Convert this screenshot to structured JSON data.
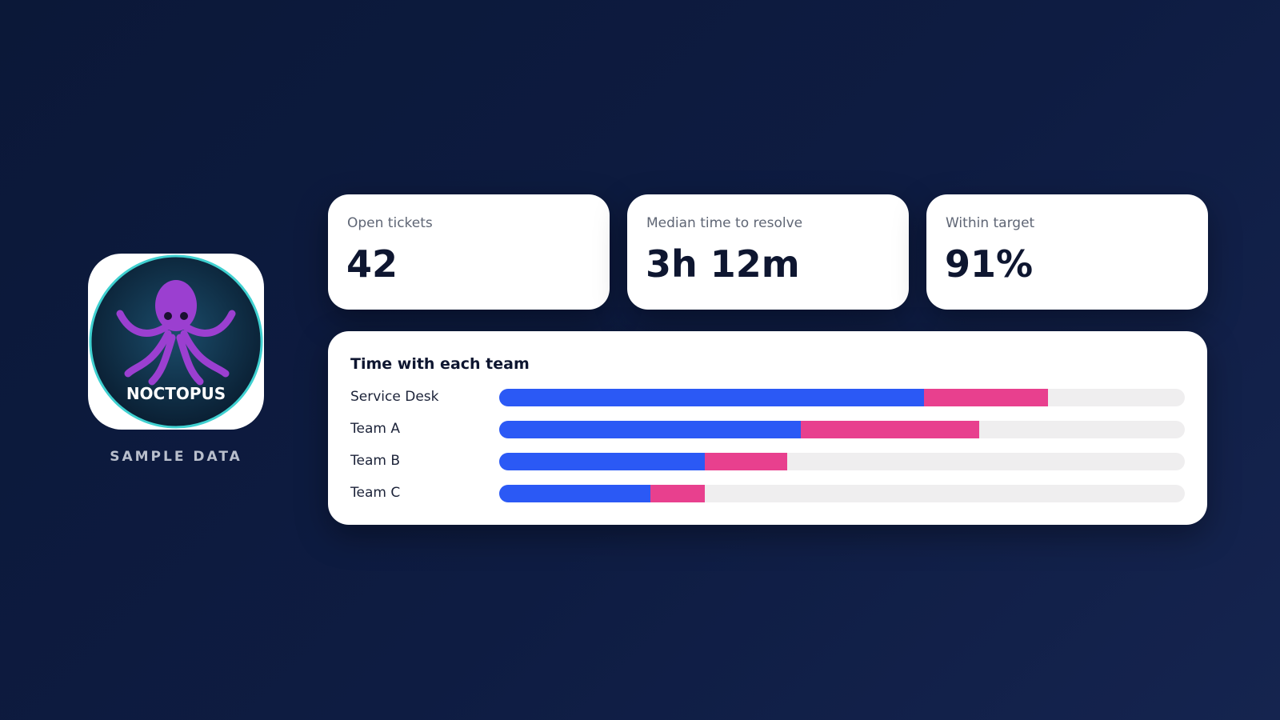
{
  "logo": {
    "text": "NOCTOPUS",
    "caption": "SAMPLE DATA"
  },
  "cards": [
    {
      "label": "Open tickets",
      "value": "42"
    },
    {
      "label": "Median time to resolve",
      "value": "3h 12m"
    },
    {
      "label": "Within target",
      "value": "91%"
    }
  ],
  "chart_data": {
    "type": "stacked-bar",
    "title": "Time with each team",
    "categories": [
      "Service Desk",
      "Team A",
      "Team B",
      "Team C"
    ],
    "series": [
      {
        "color": "#2b59f5",
        "values": [
          62,
          44,
          30,
          22
        ]
      },
      {
        "color": "#e8408e",
        "values": [
          18,
          26,
          12,
          8
        ]
      }
    ],
    "xlim": [
      0,
      100
    ],
    "track_color": "#efeeef"
  }
}
